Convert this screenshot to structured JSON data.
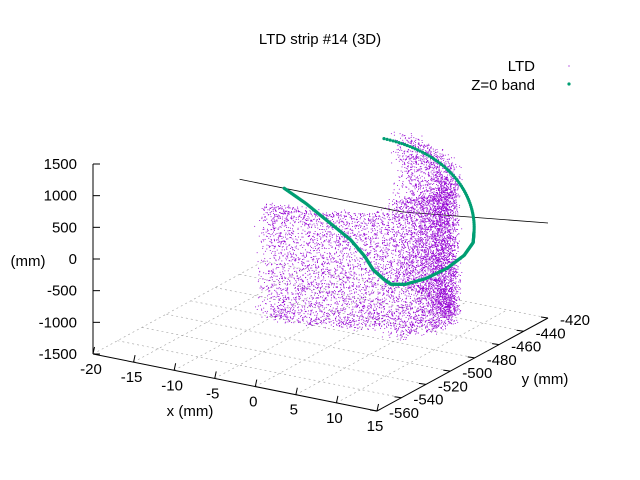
{
  "chart_data": {
    "type": "scatter",
    "title": "LTD strip #14 (3D)",
    "xlabel": "x (mm)",
    "ylabel": "y (mm)",
    "zlabel": "(mm)",
    "xlim": [
      -20,
      15
    ],
    "ylim": [
      -560,
      -420
    ],
    "zlim": [
      -1500,
      1500
    ],
    "xticks": [
      "-20",
      "-15",
      "-10",
      "-5",
      "0",
      "5",
      "10",
      "15"
    ],
    "yticks": [
      "-560",
      "-540",
      "-520",
      "-500",
      "-480",
      "-460",
      "-440",
      "-420"
    ],
    "zticks": [
      "-1500",
      "-1000",
      "-500",
      "0",
      "500",
      "1000",
      "1500"
    ],
    "grid": true,
    "legend_position": "top-right",
    "colors": {
      "ltd": "#9400d3",
      "band": "#009e73",
      "axis": "#000000",
      "grid": "#a0a0a0"
    },
    "series": [
      {
        "name": "LTD",
        "style": "dots",
        "description_points": "dense point cloud on a curved surface (strip)",
        "x_range": [
          -13,
          11
        ],
        "y_range": [
          -530,
          -440
        ],
        "z_range": [
          -1500,
          1500
        ]
      },
      {
        "name": "Z=0 band",
        "style": "points",
        "points": [
          {
            "x": -14.5,
            "y": -440,
            "z": 0
          },
          {
            "x": -10,
            "y": -452,
            "z": 0
          },
          {
            "x": -5,
            "y": -467,
            "z": 0
          },
          {
            "x": 0,
            "y": -482,
            "z": 0
          },
          {
            "x": 4,
            "y": -497,
            "z": 0
          },
          {
            "x": 7,
            "y": -510,
            "z": 0
          },
          {
            "x": 9.5,
            "y": -518,
            "z": 0
          },
          {
            "x": 11,
            "y": -522,
            "z": 0
          },
          {
            "x": 12.3,
            "y": -519,
            "z": 0
          },
          {
            "x": 13.2,
            "y": -508,
            "z": 0
          },
          {
            "x": 13.4,
            "y": -492,
            "z": 0
          },
          {
            "x": 12.8,
            "y": -474,
            "z": 0
          },
          {
            "x": 11.5,
            "y": -458,
            "z": 0
          },
          {
            "x": 9.8,
            "y": -446,
            "z": 0
          }
        ]
      }
    ]
  }
}
